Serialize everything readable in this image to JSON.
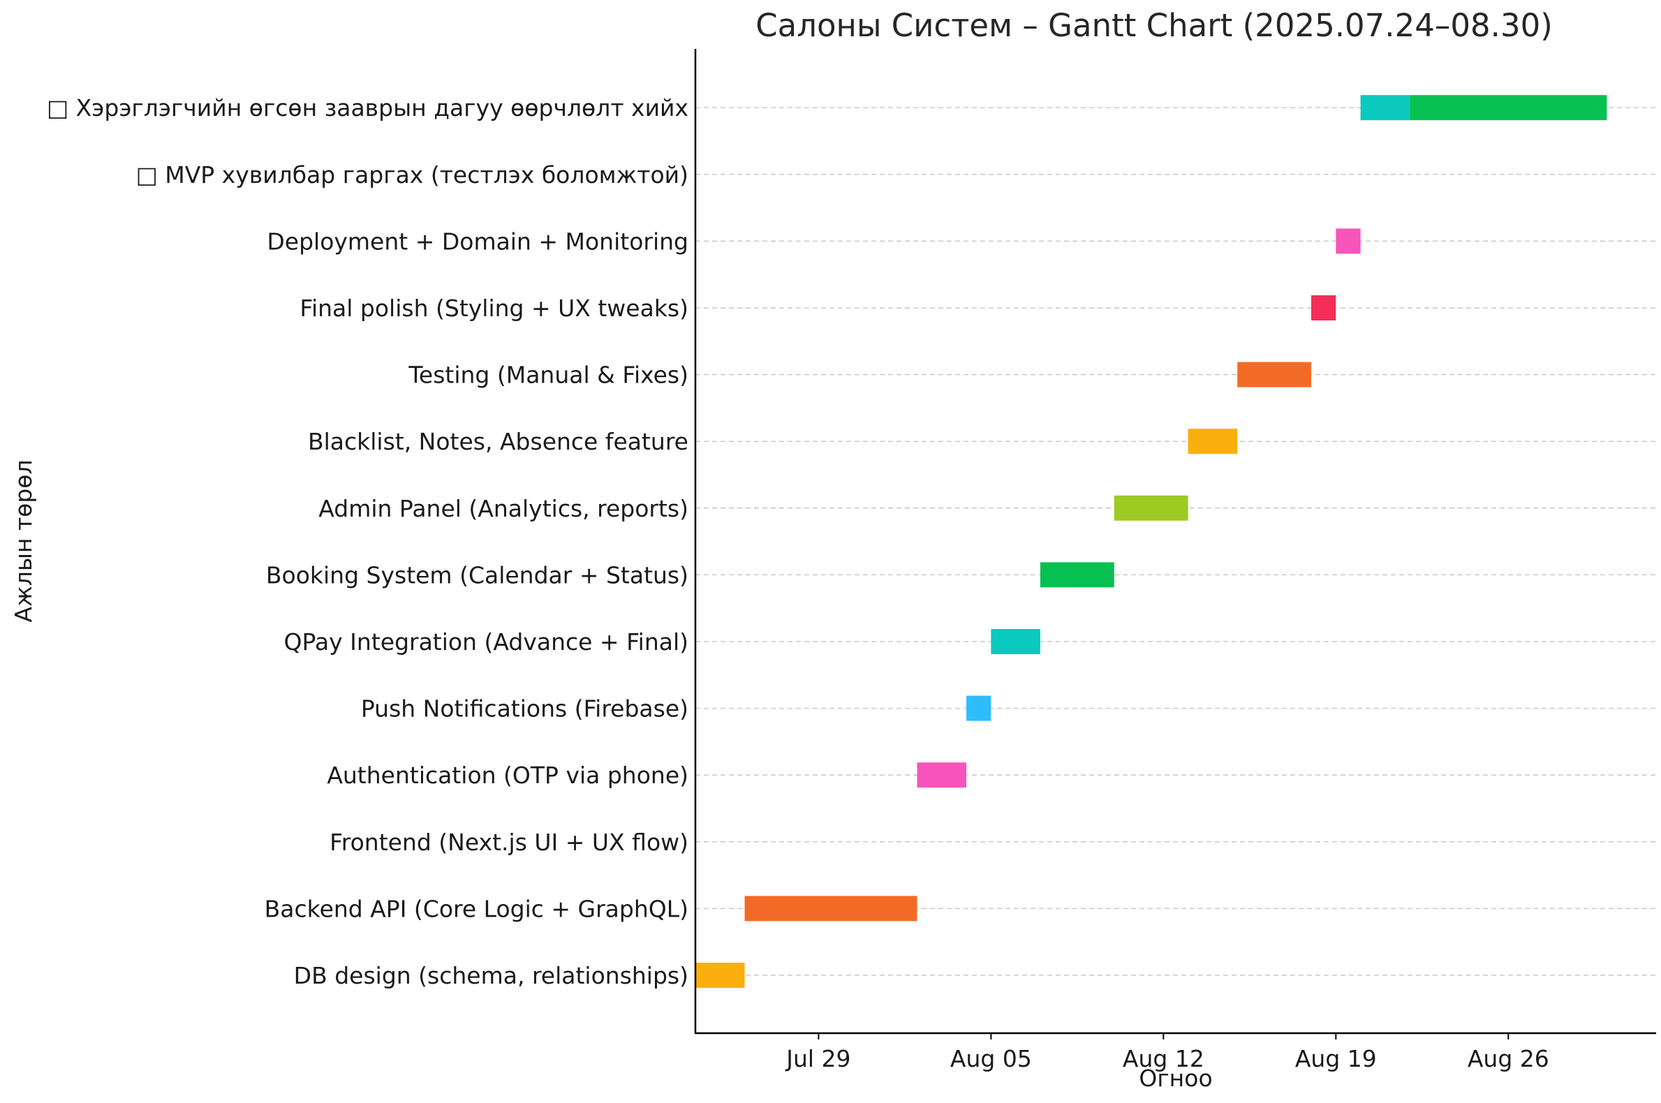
{
  "chart_data": {
    "type": "gantt",
    "title": "Салоны Систем – Gantt Chart (2025.07.24–08.30)",
    "xlabel": "Огноо",
    "ylabel": "Ажлын төрөл",
    "x_type": "date",
    "xlim": [
      "2025-07-24",
      "2025-09-01"
    ],
    "x_ticks": [
      {
        "date": "2025-07-29",
        "label": "Jul 29"
      },
      {
        "date": "2025-08-05",
        "label": "Aug 05"
      },
      {
        "date": "2025-08-12",
        "label": "Aug 12"
      },
      {
        "date": "2025-08-19",
        "label": "Aug 19"
      },
      {
        "date": "2025-08-26",
        "label": "Aug 26"
      }
    ],
    "grid": "horizontal dashed",
    "tasks": [
      {
        "name": "DB design (schema, relationships)",
        "segments": [
          {
            "start": "2025-07-24",
            "end": "2025-07-26",
            "color": "#FAAF0E"
          }
        ]
      },
      {
        "name": "Backend API (Core Logic + GraphQL)",
        "segments": [
          {
            "start": "2025-07-26",
            "end": "2025-08-02",
            "color": "#F26B26"
          }
        ]
      },
      {
        "name": "Frontend (Next.js UI + UX flow)",
        "segments": []
      },
      {
        "name": "Authentication (OTP via phone)",
        "segments": [
          {
            "start": "2025-08-02",
            "end": "2025-08-04",
            "color": "#F755BC"
          }
        ]
      },
      {
        "name": "Push Notifications (Firebase)",
        "segments": [
          {
            "start": "2025-08-04",
            "end": "2025-08-05",
            "color": "#2EBDF9"
          }
        ]
      },
      {
        "name": "QPay Integration (Advance + Final)",
        "segments": [
          {
            "start": "2025-08-05",
            "end": "2025-08-07",
            "color": "#0ACAC0"
          }
        ]
      },
      {
        "name": "Booking System (Calendar + Status)",
        "segments": [
          {
            "start": "2025-08-07",
            "end": "2025-08-10",
            "color": "#06C152"
          }
        ]
      },
      {
        "name": "Admin Panel (Analytics, reports)",
        "segments": [
          {
            "start": "2025-08-10",
            "end": "2025-08-13",
            "color": "#9ECA21"
          }
        ]
      },
      {
        "name": "Blacklist, Notes, Absence feature",
        "segments": [
          {
            "start": "2025-08-13",
            "end": "2025-08-15",
            "color": "#FAAF0E"
          }
        ]
      },
      {
        "name": "Testing (Manual & Fixes)",
        "segments": [
          {
            "start": "2025-08-15",
            "end": "2025-08-18",
            "color": "#F26B26"
          }
        ]
      },
      {
        "name": "Final polish (Styling + UX tweaks)",
        "segments": [
          {
            "start": "2025-08-18",
            "end": "2025-08-19",
            "color": "#F42E57"
          }
        ]
      },
      {
        "name": "Deployment + Domain + Monitoring",
        "segments": [
          {
            "start": "2025-08-19",
            "end": "2025-08-20",
            "color": "#F755BC"
          }
        ]
      },
      {
        "name": "□ MVP хувилбар гаргах (тестлэх боломжтой)",
        "segments": []
      },
      {
        "name": "□ Хэрэглэгчийн өгсөн зааврын дагуу өөрчлөлт хийх",
        "segments": [
          {
            "start": "2025-08-20",
            "end": "2025-08-22",
            "color": "#0ACAC0"
          },
          {
            "start": "2025-08-22",
            "end": "2025-08-30",
            "color": "#06C152"
          }
        ]
      }
    ]
  }
}
